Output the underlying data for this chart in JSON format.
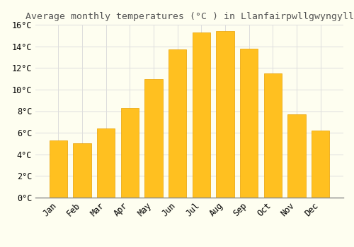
{
  "months": [
    "Jan",
    "Feb",
    "Mar",
    "Apr",
    "May",
    "Jun",
    "Jul",
    "Aug",
    "Sep",
    "Oct",
    "Nov",
    "Dec"
  ],
  "values": [
    5.3,
    5.0,
    6.4,
    8.3,
    11.0,
    13.7,
    15.3,
    15.4,
    13.8,
    11.5,
    7.7,
    6.2
  ],
  "bar_color": "#FFC020",
  "bar_edge_color": "#E8A000",
  "background_color": "#FEFEF0",
  "grid_color": "#DDDDDD",
  "title": "Average monthly temperatures (°C ) in Llanfairpwllgwyngyll",
  "title_fontsize": 9.5,
  "tick_label_fontsize": 8.5,
  "ylim": [
    0,
    16
  ],
  "ytick_interval": 2,
  "font_family": "monospace",
  "bar_width": 0.75
}
